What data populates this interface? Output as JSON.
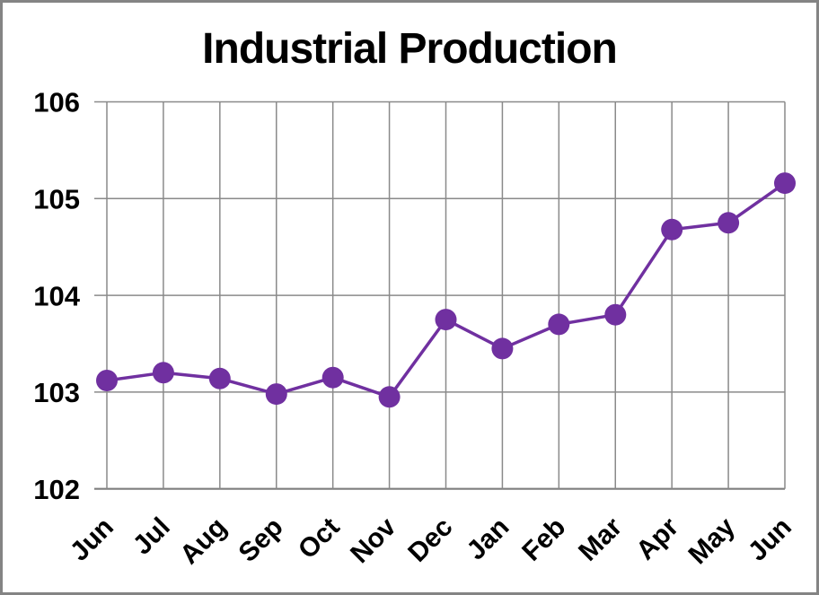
{
  "window": {
    "background_color": "#ffffff",
    "frame_border_color": "#848484"
  },
  "chart_data": {
    "type": "line",
    "title": "Industrial Production",
    "categories": [
      "Jun",
      "Jul",
      "Aug",
      "Sep",
      "Oct",
      "Nov",
      "Dec",
      "Jan",
      "Feb",
      "Mar",
      "Apr",
      "May",
      "Jun"
    ],
    "series": [
      {
        "name": "Industrial Production",
        "values": [
          103.12,
          103.2,
          103.14,
          102.98,
          103.15,
          102.95,
          103.75,
          103.45,
          103.7,
          103.8,
          104.68,
          104.75,
          105.16
        ],
        "color": "#7030A0",
        "marker": "circle"
      }
    ],
    "xlabel": "",
    "ylabel": "",
    "ylim": [
      102,
      106
    ],
    "ytick_step": 1,
    "yticks": [
      "102",
      "103",
      "104",
      "105",
      "106"
    ],
    "x_labels_rotation_deg": 45,
    "grid": "both",
    "gridline_color": "#8a8a8a",
    "axis_line_color": "#7f7f7f",
    "tick_label_color": "#000000",
    "legend": "none"
  }
}
